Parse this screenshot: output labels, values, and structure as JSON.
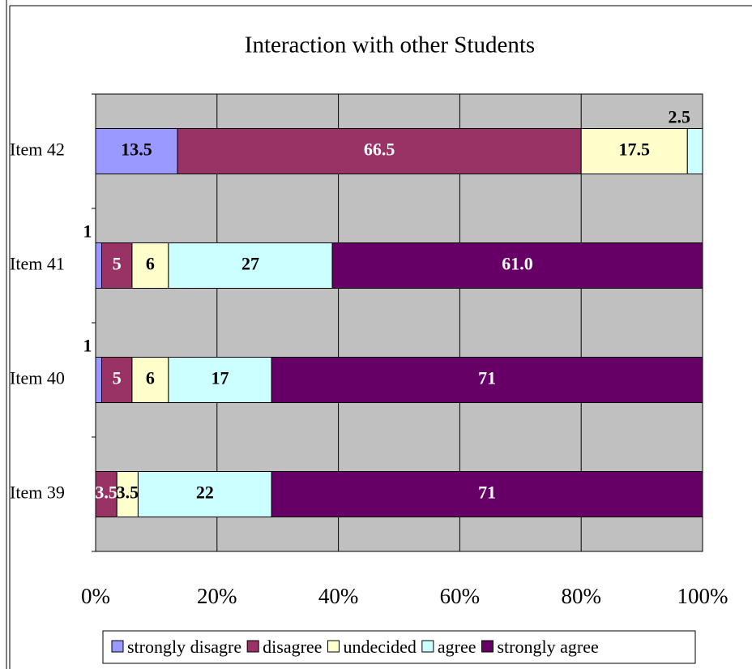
{
  "chart_data": {
    "type": "stacked_barh",
    "title": "Interaction with other Students",
    "categories": [
      "Item 42",
      "Item 41",
      "Item 40",
      "Item 39"
    ],
    "series": [
      {
        "name": "strongly disagre",
        "color": "#9999ff",
        "label_color": "#000000",
        "values": [
          13.5,
          1,
          1,
          0
        ]
      },
      {
        "name": "disagree",
        "color": "#993366",
        "label_color": "#ffffff",
        "values": [
          66.5,
          5,
          5,
          3.5
        ]
      },
      {
        "name": "undecided",
        "color": "#ffffcc",
        "label_color": "#000000",
        "values": [
          17.5,
          6,
          6,
          3.5
        ]
      },
      {
        "name": "agree",
        "color": "#ccffff",
        "label_color": "#000000",
        "values": [
          2.5,
          27,
          17,
          22
        ]
      },
      {
        "name": "strongly agree",
        "color": "#660066",
        "label_color": "#ffffff",
        "values": [
          0,
          61,
          71,
          71
        ],
        "value_labels": [
          null,
          "61.0",
          "71",
          "71"
        ]
      }
    ],
    "xlim": [
      0,
      100
    ],
    "xticks": [
      {
        "value": 0,
        "label": "0%"
      },
      {
        "value": 20,
        "label": "20%"
      },
      {
        "value": 40,
        "label": "40%"
      },
      {
        "value": 60,
        "label": "60%"
      },
      {
        "value": 80,
        "label": "80%"
      },
      {
        "value": 100,
        "label": "100%"
      }
    ],
    "grid": true,
    "background": "#c0c0c0",
    "legend": "bottom"
  }
}
